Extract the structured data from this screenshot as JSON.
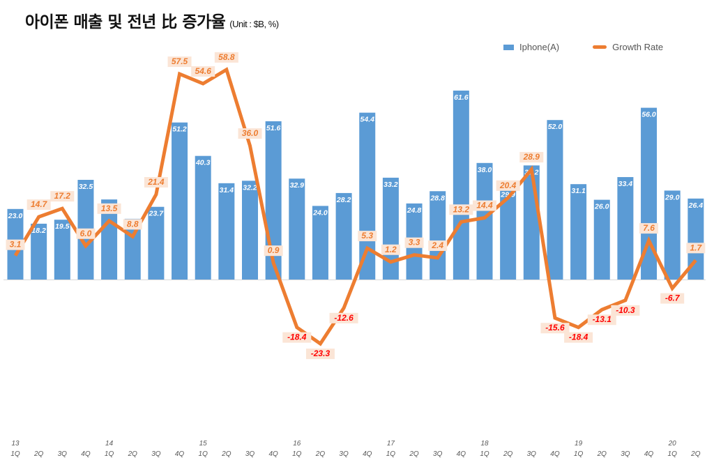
{
  "header": {
    "title": "아이폰 매출 및 전년 比 증가율",
    "unit": "(Unit : $B, %)"
  },
  "colors": {
    "bar": "#5b9bd5",
    "line": "#ed7d31",
    "label_bg": "#fbe5d6",
    "positive_label": "#ed7d31",
    "negative_label": "#ff0000"
  },
  "chart_data": {
    "type": "bar",
    "title": "아이폰 매출 및 전년 比 증가율 (Unit : $B, %)",
    "xlabel": "",
    "ylabel": "",
    "legend": {
      "position": "top-right",
      "entries": [
        "Iphone(A)",
        "Growth Rate"
      ]
    },
    "grid": false,
    "categories": [
      "1Q",
      "2Q",
      "3Q",
      "4Q",
      "1Q",
      "2Q",
      "3Q",
      "4Q",
      "1Q",
      "2Q",
      "3Q",
      "4Q",
      "1Q",
      "2Q",
      "3Q",
      "4Q",
      "1Q",
      "2Q",
      "3Q",
      "4Q",
      "1Q",
      "2Q",
      "3Q",
      "4Q",
      "1Q",
      "2Q",
      "3Q",
      "4Q",
      "1Q",
      "2Q"
    ],
    "year_labels": [
      "13",
      "",
      "",
      "",
      "14",
      "",
      "",
      "",
      "15",
      "",
      "",
      "",
      "16",
      "",
      "",
      "",
      "17",
      "",
      "",
      "",
      "18",
      "",
      "",
      "",
      "19",
      "",
      "",
      "",
      "20",
      ""
    ],
    "series": [
      {
        "name": "Iphone(A)",
        "type": "bar",
        "values": [
          23.0,
          18.2,
          19.5,
          32.5,
          26.1,
          19.8,
          23.7,
          51.2,
          40.3,
          31.4,
          32.2,
          51.6,
          32.9,
          24.0,
          28.2,
          54.4,
          33.2,
          24.8,
          28.8,
          61.6,
          38.0,
          29.9,
          37.2,
          52.0,
          31.1,
          26.0,
          33.4,
          56.0,
          29.0,
          26.4
        ]
      },
      {
        "name": "Growth Rate",
        "type": "line",
        "values": [
          3.1,
          14.7,
          17.2,
          6.0,
          13.5,
          8.8,
          21.4,
          57.5,
          54.6,
          58.8,
          36.0,
          0.9,
          -18.4,
          -23.3,
          -12.6,
          5.3,
          1.2,
          3.3,
          2.4,
          13.2,
          14.4,
          20.4,
          28.9,
          -15.6,
          -18.4,
          -13.1,
          -10.3,
          7.6,
          -6.7,
          1.7
        ]
      }
    ],
    "ylim_bar": [
      0,
      70
    ],
    "ylim_line": [
      -40,
      60
    ]
  }
}
